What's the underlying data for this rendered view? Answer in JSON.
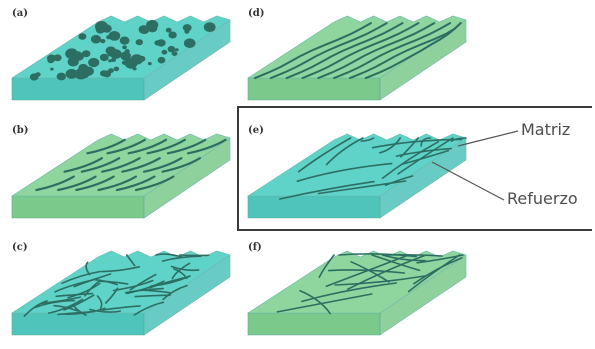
{
  "colors": {
    "cyan_top": "#5fd3c8",
    "cyan_side": "#4ec4ba",
    "green_top": "#8fd59e",
    "green_side": "#7cc98c",
    "reinforcement": "#2d6e63",
    "frame": "#3a3a3a"
  },
  "panels": [
    {
      "id": "a",
      "label": "(a)",
      "matrix": "cyan",
      "reinforcement": "particles"
    },
    {
      "id": "b",
      "label": "(b)",
      "matrix": "green",
      "reinforcement": "aligned short fibers"
    },
    {
      "id": "c",
      "label": "(c)",
      "matrix": "cyan",
      "reinforcement": "random short fibers"
    },
    {
      "id": "d",
      "label": "(d)",
      "matrix": "green",
      "reinforcement": "aligned long fibers"
    },
    {
      "id": "e",
      "label": "(e)",
      "matrix": "cyan",
      "reinforcement": "woven fibers",
      "highlighted": true
    },
    {
      "id": "f",
      "label": "(f)",
      "matrix": "green",
      "reinforcement": "random long fibers"
    }
  ],
  "callouts": {
    "matrix": "Matriz",
    "reinforcement": "Refuerzo"
  }
}
